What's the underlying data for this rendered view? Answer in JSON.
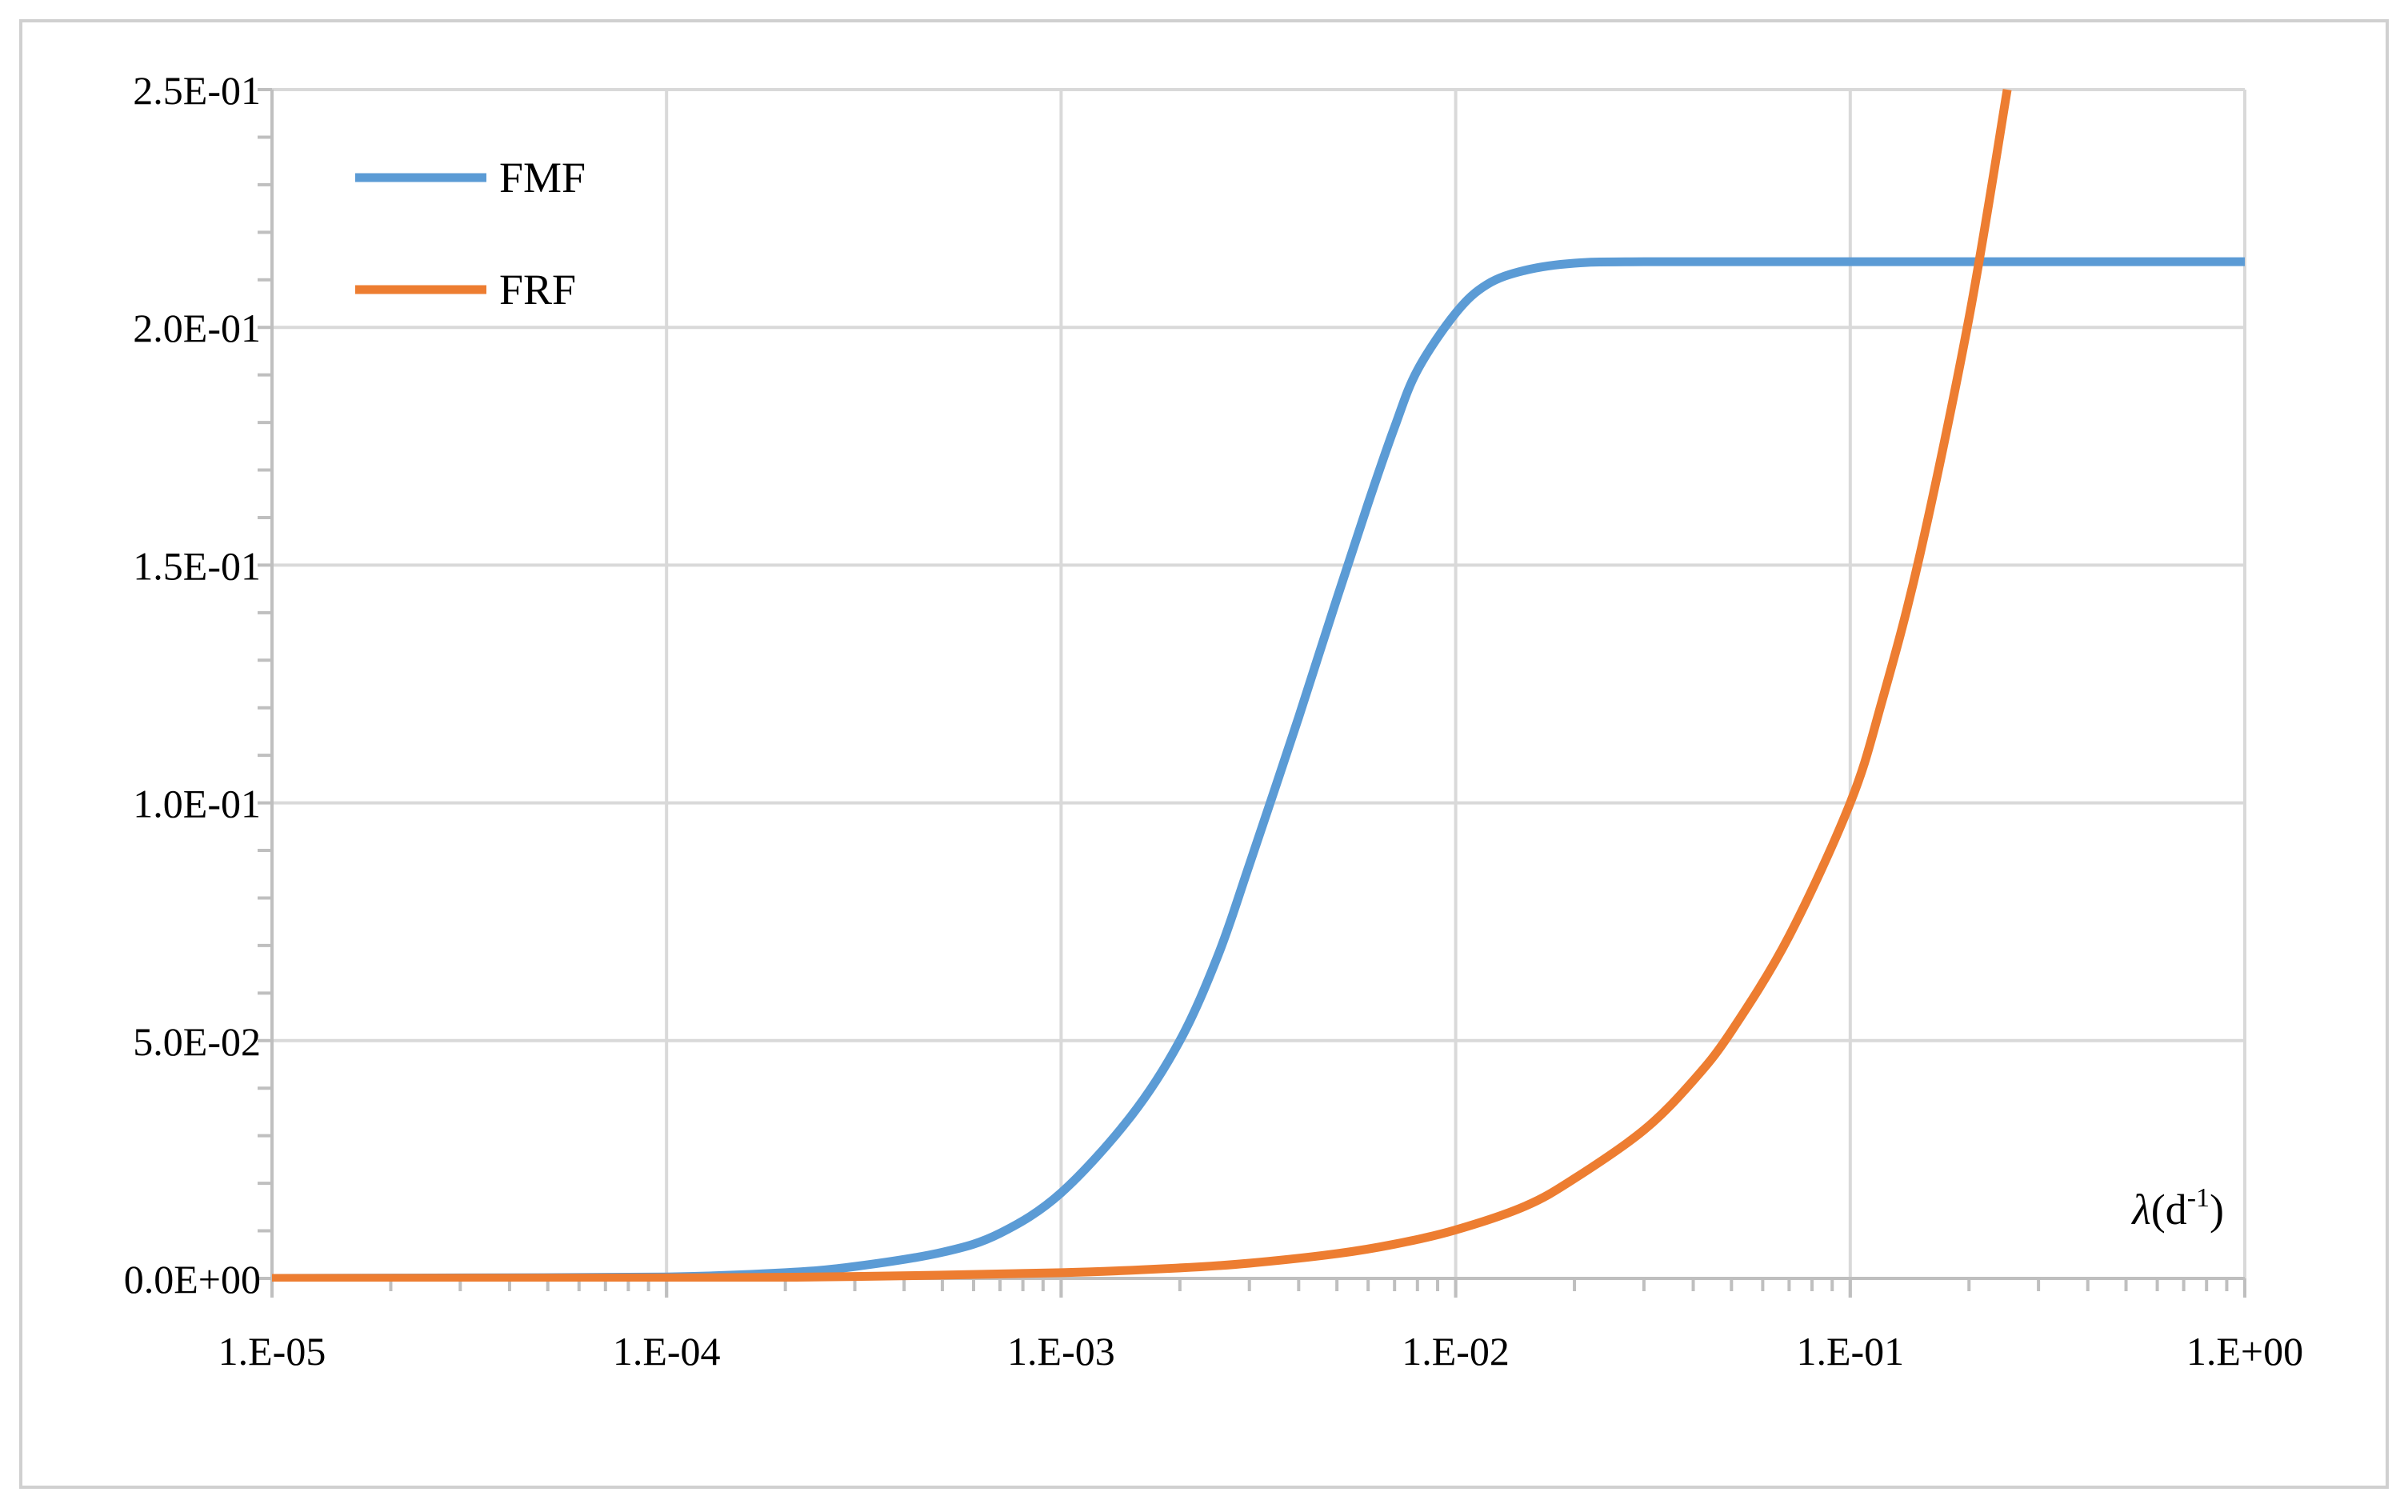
{
  "chart_data": {
    "type": "line",
    "x_scale": "log",
    "xlim": [
      1e-05,
      1
    ],
    "ylim": [
      0,
      0.25
    ],
    "x_ticks": [
      {
        "value": 1e-05,
        "label": "1.E-05"
      },
      {
        "value": 0.0001,
        "label": "1.E-04"
      },
      {
        "value": 0.001,
        "label": "1.E-03"
      },
      {
        "value": 0.01,
        "label": "1.E-02"
      },
      {
        "value": 0.1,
        "label": "1.E-01"
      },
      {
        "value": 1,
        "label": "1.E+00"
      }
    ],
    "y_ticks": [
      {
        "value": 0,
        "label": "0.0E+00"
      },
      {
        "value": 0.05,
        "label": "5.0E-02"
      },
      {
        "value": 0.1,
        "label": "1.0E-01"
      },
      {
        "value": 0.15,
        "label": "1.5E-01"
      },
      {
        "value": 0.2,
        "label": "2.0E-01"
      },
      {
        "value": 0.25,
        "label": "2.5E-01"
      }
    ],
    "xlabel": {
      "symbol": "λ",
      "open": "(d",
      "sup": "-1",
      "close": ")"
    },
    "ylabel": "",
    "grid": true,
    "legend_position": "top-left",
    "series": [
      {
        "name": "FMF",
        "color": "#5B9BD5",
        "points": [
          [
            1e-05,
            0.0
          ],
          [
            3e-05,
            0.0001
          ],
          [
            0.0001,
            0.0003
          ],
          [
            0.0002,
            0.0012
          ],
          [
            0.0003,
            0.0025
          ],
          [
            0.0005,
            0.0055
          ],
          [
            0.0007,
            0.0095
          ],
          [
            0.001,
            0.018
          ],
          [
            0.0015,
            0.034
          ],
          [
            0.002,
            0.05
          ],
          [
            0.0025,
            0.068
          ],
          [
            0.003,
            0.087
          ],
          [
            0.004,
            0.118
          ],
          [
            0.005,
            0.143
          ],
          [
            0.006,
            0.163
          ],
          [
            0.007,
            0.179
          ],
          [
            0.008,
            0.191
          ],
          [
            0.01,
            0.203
          ],
          [
            0.012,
            0.209
          ],
          [
            0.015,
            0.212
          ],
          [
            0.02,
            0.2135
          ],
          [
            0.03,
            0.2138
          ],
          [
            0.1,
            0.2138
          ],
          [
            1,
            0.2138
          ]
        ]
      },
      {
        "name": "FRF",
        "color": "#ED7D31",
        "points": [
          [
            1e-05,
            0.0
          ],
          [
            0.0001,
            0.0001
          ],
          [
            0.0003,
            0.0004
          ],
          [
            0.001,
            0.0012
          ],
          [
            0.002,
            0.0022
          ],
          [
            0.003,
            0.0032
          ],
          [
            0.005,
            0.0052
          ],
          [
            0.007,
            0.0072
          ],
          [
            0.01,
            0.0102
          ],
          [
            0.015,
            0.0152
          ],
          [
            0.02,
            0.021
          ],
          [
            0.03,
            0.0312
          ],
          [
            0.04,
            0.0416
          ],
          [
            0.05,
            0.052
          ],
          [
            0.07,
            0.072
          ],
          [
            0.1,
            0.1
          ],
          [
            0.12,
            0.121
          ],
          [
            0.15,
            0.152
          ],
          [
            0.2,
            0.202
          ],
          [
            0.25,
            0.25
          ]
        ]
      }
    ]
  }
}
